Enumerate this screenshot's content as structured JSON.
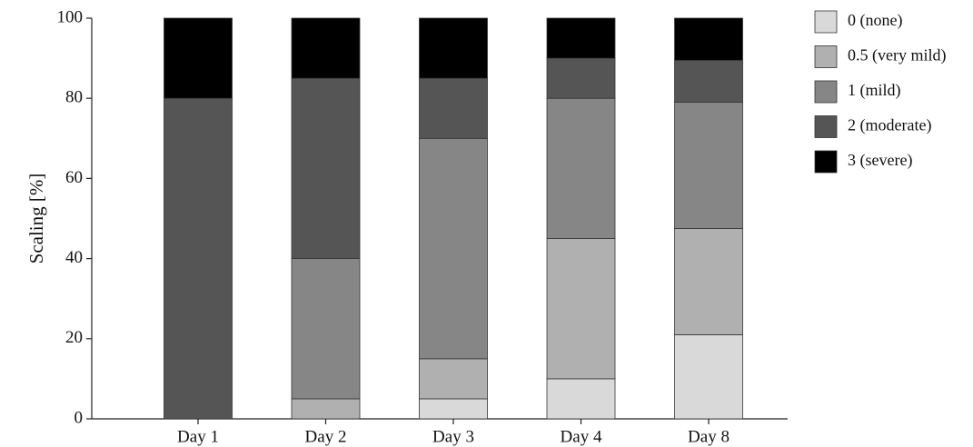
{
  "chart_data": {
    "type": "bar",
    "stacked": true,
    "categories": [
      "Day 1",
      "Day 2",
      "Day 3",
      "Day 4",
      "Day 8"
    ],
    "ylabel": "Scaling [%]",
    "xlabel": "",
    "ylim": [
      0,
      100
    ],
    "yticks": [
      0,
      20,
      40,
      60,
      80,
      100
    ],
    "grid": false,
    "legend_position": "right",
    "series": [
      {
        "name": "0 (none)",
        "color": "#d9d9d9",
        "values": [
          0,
          0,
          5,
          10,
          21
        ]
      },
      {
        "name": "0.5 (very mild)",
        "color": "#b0b0b0",
        "values": [
          0,
          5,
          10,
          35,
          26.5
        ]
      },
      {
        "name": "1 (mild)",
        "color": "#868686",
        "values": [
          0,
          35,
          55,
          35,
          31.5
        ]
      },
      {
        "name": "2 (moderate)",
        "color": "#555555",
        "values": [
          80,
          45,
          15,
          10,
          10.5
        ]
      },
      {
        "name": "3 (severe)",
        "color": "#000000",
        "values": [
          20,
          15,
          15,
          10,
          10.5
        ]
      }
    ]
  }
}
